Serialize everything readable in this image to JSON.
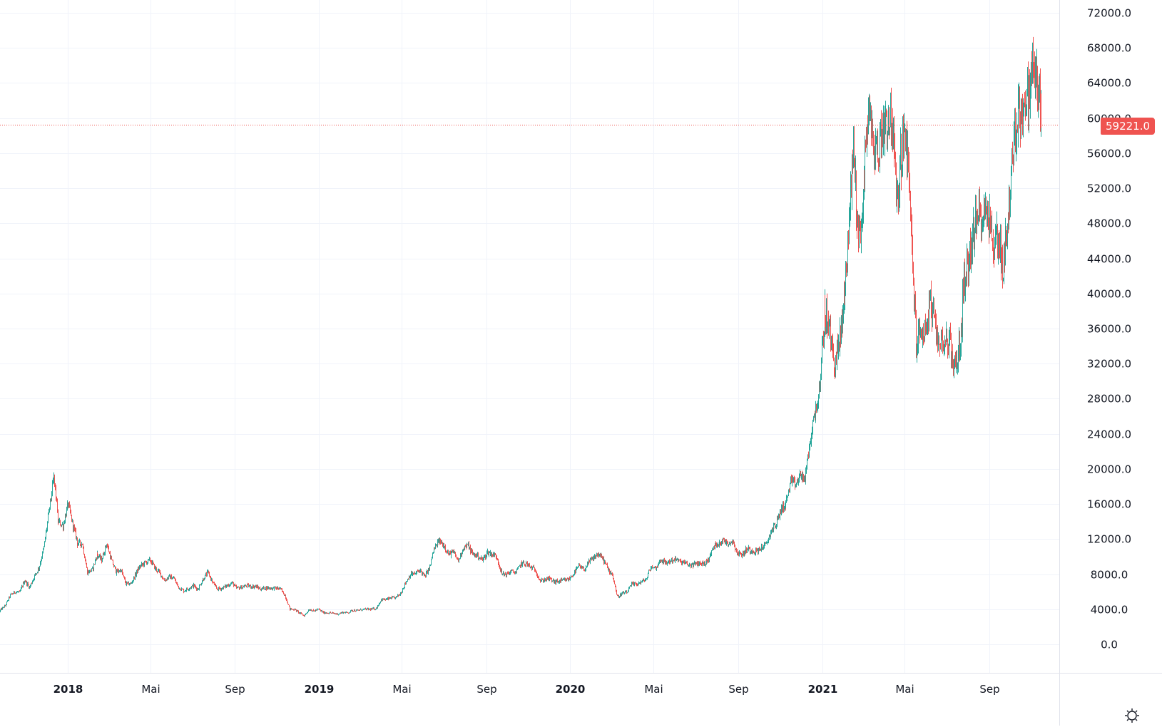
{
  "chart_data": {
    "type": "candlestick",
    "title": "",
    "interval": "1D",
    "series_start": "2017-09-25",
    "weekly_closes": [
      3900,
      4400,
      5600,
      6000,
      5900,
      7300,
      6500,
      7800,
      8700,
      11000,
      15000,
      19000,
      14000,
      13500,
      16000,
      13500,
      11500,
      11500,
      8200,
      8500,
      10300,
      9600,
      11500,
      9500,
      8200,
      8500,
      6900,
      6900,
      8000,
      8900,
      9300,
      9600,
      8700,
      8200,
      7300,
      7700,
      7500,
      6500,
      6100,
      6400,
      6700,
      6300,
      7400,
      8200,
      7000,
      6300,
      6400,
      6700,
      7000,
      6400,
      6500,
      6700,
      6600,
      6600,
      6300,
      6450,
      6400,
      6400,
      6350,
      5600,
      4000,
      4000,
      3600,
      3250,
      4000,
      3800,
      4000,
      3600,
      3600,
      3550,
      3450,
      3650,
      3600,
      3900,
      3850,
      3950,
      4000,
      4000,
      4100,
      5100,
      5100,
      5300,
      5300,
      5800,
      7000,
      8000,
      8000,
      8500,
      7700,
      8800,
      10800,
      11800,
      11300,
      10200,
      10500,
      9500,
      11000,
      11300,
      10300,
      10100,
      9600,
      10500,
      10300,
      10000,
      8000,
      8000,
      8300,
      8200,
      9200,
      9200,
      8800,
      8500,
      7200,
      7400,
      7500,
      7100,
      7200,
      7300,
      7400,
      8100,
      8900,
      8500,
      9300,
      9800,
      10300,
      9700,
      8600,
      8000,
      5400,
      5800,
      5900,
      6800,
      6900,
      7100,
      7500,
      8800,
      8700,
      9700,
      9200,
      9500,
      9700,
      9400,
      9300,
      9000,
      9100,
      9250,
      9200,
      9700,
      11100,
      11600,
      11800,
      11600,
      11700,
      10300,
      10300,
      10900,
      10700,
      10600,
      11100,
      11400,
      13000,
      13800,
      15500,
      16000,
      18500,
      18200,
      19300,
      18800,
      23000,
      26500,
      29000,
      38000,
      36000,
      32000,
      34000,
      39000,
      47000,
      57000,
      46000,
      50500,
      61000,
      57500,
      55800,
      59000,
      60000,
      60000,
      50000,
      57000,
      58000,
      47000,
      34500,
      35500,
      35800,
      39000,
      35500,
      34500,
      35000,
      34200,
      31500,
      33800,
      41500,
      44000,
      47000,
      49000,
      48800,
      50000,
      45000,
      47000,
      42700,
      48000,
      54900,
      60800,
      61300,
      61300,
      65500,
      64500,
      59221
    ],
    "ylim": [
      -4000,
      72000
    ],
    "y_ticks": [
      "72000.0",
      "68000.0",
      "64000.0",
      "60000.0",
      "56000.0",
      "52000.0",
      "48000.0",
      "44000.0",
      "40000.0",
      "36000.0",
      "32000.0",
      "28000.0",
      "24000.0",
      "20000.0",
      "16000.0",
      "12000.0",
      "8000.0",
      "4000.0",
      "0.0"
    ],
    "x_ticks": [
      {
        "label": "2018",
        "date": "2018-01-01",
        "year": true
      },
      {
        "label": "Mai",
        "date": "2018-05-01"
      },
      {
        "label": "Sep",
        "date": "2018-09-01"
      },
      {
        "label": "2019",
        "date": "2019-01-01",
        "year": true
      },
      {
        "label": "Mai",
        "date": "2019-05-01"
      },
      {
        "label": "Sep",
        "date": "2019-09-01"
      },
      {
        "label": "2020",
        "date": "2020-01-01",
        "year": true
      },
      {
        "label": "Mai",
        "date": "2020-05-01"
      },
      {
        "label": "Sep",
        "date": "2020-09-01"
      },
      {
        "label": "2021",
        "date": "2021-01-01",
        "year": true
      },
      {
        "label": "Mai",
        "date": "2021-05-01"
      },
      {
        "label": "Sep",
        "date": "2021-09-01"
      }
    ],
    "last_price": 59221.0,
    "last_price_label": "59221.0",
    "colors": {
      "up": "#26a69a",
      "down": "#ef5350",
      "grid": "#f0f3fa",
      "last": "#ef5350"
    }
  },
  "settings": {
    "icon": "sun-gear-icon"
  }
}
